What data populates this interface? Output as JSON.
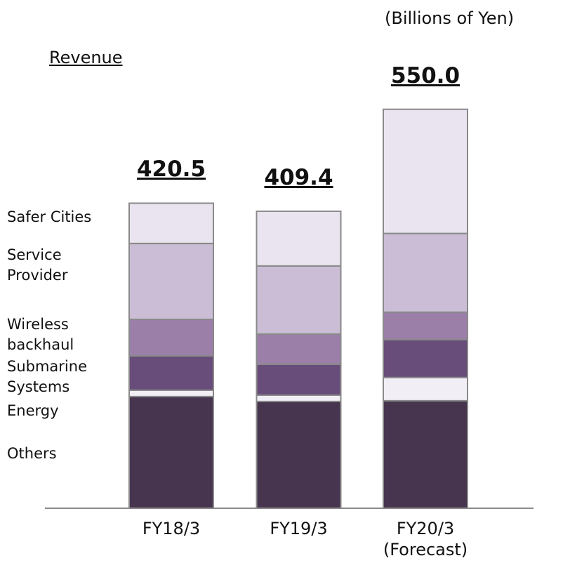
{
  "chart_data": {
    "type": "stacked-bar",
    "title": "Revenue",
    "subtitle": "(Billions of Yen)",
    "categories": [
      "FY18/3",
      "FY19/3",
      "FY20/3\n(Forecast)"
    ],
    "ylim": [
      0,
      600
    ],
    "series": [
      {
        "name": "Others",
        "color": "#47354f",
        "values": [
          154,
          147.2,
          148.2
        ]
      },
      {
        "name": "Energy",
        "color": "#f1eef5",
        "values": [
          8.7,
          8.7,
          32
        ]
      },
      {
        "name": "Submarine\nSystems",
        "color": "#684d7a",
        "values": [
          47.4,
          42.6,
          52.3
        ]
      },
      {
        "name": "Wireless\nbackhaul",
        "color": "#9b7fa9",
        "values": [
          50.3,
          41.6,
          37.8
        ]
      },
      {
        "name": "Service\nProvider",
        "color": "#cbbdd5",
        "values": [
          104.6,
          93.9,
          108.5
        ]
      },
      {
        "name": "Safer Cities",
        "color": "#e9e4f0",
        "values": [
          55.5,
          75.4,
          171.2
        ]
      }
    ],
    "totals": {
      "values": [
        420.5,
        409.4,
        550
      ],
      "value_labels": [
        "420.5",
        "409.4",
        "550.0"
      ]
    }
  }
}
